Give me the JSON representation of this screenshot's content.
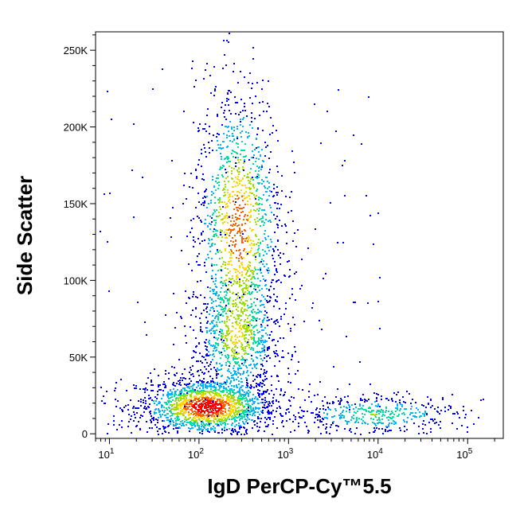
{
  "chart_data": {
    "type": "scatter",
    "subtype": "flow cytometry density dot plot (pseudocolor)",
    "xlabel": "IgD PerCP-Cy™5.5",
    "ylabel": "Side Scatter",
    "xscale": "log",
    "xlim": [
      7,
      250000
    ],
    "ylim": [
      -3000,
      262000
    ],
    "x_ticks": [
      {
        "base": "10",
        "exp": "1",
        "value": 10
      },
      {
        "base": "10",
        "exp": "2",
        "value": 100
      },
      {
        "base": "10",
        "exp": "3",
        "value": 1000
      },
      {
        "base": "10",
        "exp": "4",
        "value": 10000
      },
      {
        "base": "10",
        "exp": "5",
        "value": 100000
      }
    ],
    "y_ticks": [
      {
        "label": "0",
        "value": 0
      },
      {
        "label": "50K",
        "value": 50000
      },
      {
        "label": "100K",
        "value": 100000
      },
      {
        "label": "150K",
        "value": 150000
      },
      {
        "label": "200K",
        "value": 200000
      },
      {
        "label": "250K",
        "value": 250000
      }
    ],
    "grid": false,
    "legend": "none",
    "color_scale": [
      "#0000ff",
      "#00b4ff",
      "#00e0a0",
      "#a0e000",
      "#ffd800",
      "#ff6000",
      "#ff0000"
    ],
    "populations": [
      {
        "x_center": 120,
        "x_spread_log": 0.28,
        "y_center": 18000,
        "y_spread": 7000,
        "peak_density": 1.0
      },
      {
        "x_center": 270,
        "x_spread_log": 0.18,
        "y_center": 135000,
        "y_spread": 35000,
        "peak_density": 0.8
      },
      {
        "x_center": 260,
        "x_spread_log": 0.18,
        "y_center": 62000,
        "y_spread": 14000,
        "peak_density": 0.45
      },
      {
        "x_center": 9000,
        "x_spread_log": 0.35,
        "y_center": 13000,
        "y_spread": 5000,
        "peak_density": 0.35
      }
    ]
  }
}
